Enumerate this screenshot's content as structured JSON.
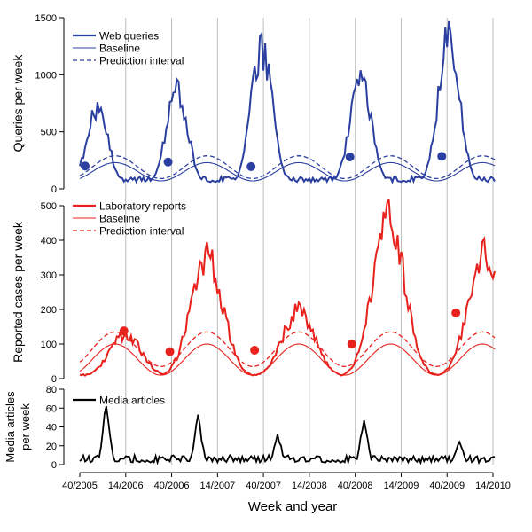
{
  "figure": {
    "xlabel": "Week and year",
    "x_ticks": [
      "40/2005",
      "14/2006",
      "40/2006",
      "14/2007",
      "40/2007",
      "14/2008",
      "40/2008",
      "14/2009",
      "40/2009",
      "14/2010"
    ]
  },
  "colors": {
    "queries": "#2b3fa0",
    "lab": "#e8211d",
    "media": "#000000",
    "grid": "#bdbdbd"
  },
  "chart_data": [
    {
      "type": "line",
      "ylabel": "Queries per week",
      "ylim": [
        0,
        1500
      ],
      "y_ticks": [
        0,
        500,
        1000,
        1500
      ],
      "legend": [
        "Web queries",
        "Baseline",
        "Prediction interval"
      ],
      "legend_position": "top-left",
      "baseline": {
        "mean": 150,
        "amplitude": 80,
        "peak_week_offset": 20
      },
      "prediction_interval": {
        "mean": 190,
        "amplitude": 100
      },
      "peaks": [
        {
          "week_index": 10,
          "value": 760
        },
        {
          "week_index": 55,
          "value": 960
        },
        {
          "week_index": 103,
          "value": 1360
        },
        {
          "week_index": 159,
          "value": 1040
        },
        {
          "week_index": 209,
          "value": 1470
        }
      ],
      "alert_points": [
        {
          "week_index": 3,
          "value": 200
        },
        {
          "week_index": 50,
          "value": 235
        },
        {
          "week_index": 97,
          "value": 195
        },
        {
          "week_index": 153,
          "value": 280
        },
        {
          "week_index": 205,
          "value": 285
        }
      ]
    },
    {
      "type": "line",
      "ylabel": "Reported cases per week",
      "ylim": [
        0,
        500
      ],
      "y_ticks": [
        0,
        100,
        200,
        300,
        400,
        500
      ],
      "legend": [
        "Laboratory reports",
        "Baseline",
        "Prediction interval"
      ],
      "legend_position": "top-left",
      "baseline": {
        "mean": 55,
        "amplitude": 45
      },
      "prediction_interval": {
        "mean": 85,
        "amplitude": 50
      },
      "peaks": [
        {
          "week_index": 26,
          "value": 140
        },
        {
          "week_index": 72,
          "value": 395
        },
        {
          "week_index": 124,
          "value": 220
        },
        {
          "week_index": 175,
          "value": 520
        },
        {
          "week_index": 229,
          "value": 405
        }
      ],
      "alert_points": [
        {
          "week_index": 25,
          "value": 138
        },
        {
          "week_index": 51,
          "value": 78
        },
        {
          "week_index": 99,
          "value": 82
        },
        {
          "week_index": 154,
          "value": 100
        },
        {
          "week_index": 213,
          "value": 190
        }
      ]
    },
    {
      "type": "line",
      "ylabel": "Media articles per week",
      "ylim": [
        0,
        80
      ],
      "y_ticks": [
        0,
        20,
        40,
        60,
        80
      ],
      "legend": [
        "Media articles"
      ],
      "legend_position": "top-left",
      "peaks": [
        {
          "week_index": 15,
          "value": 62
        },
        {
          "week_index": 67,
          "value": 53
        },
        {
          "week_index": 112,
          "value": 32
        },
        {
          "week_index": 161,
          "value": 47
        },
        {
          "week_index": 215,
          "value": 24
        }
      ]
    }
  ]
}
